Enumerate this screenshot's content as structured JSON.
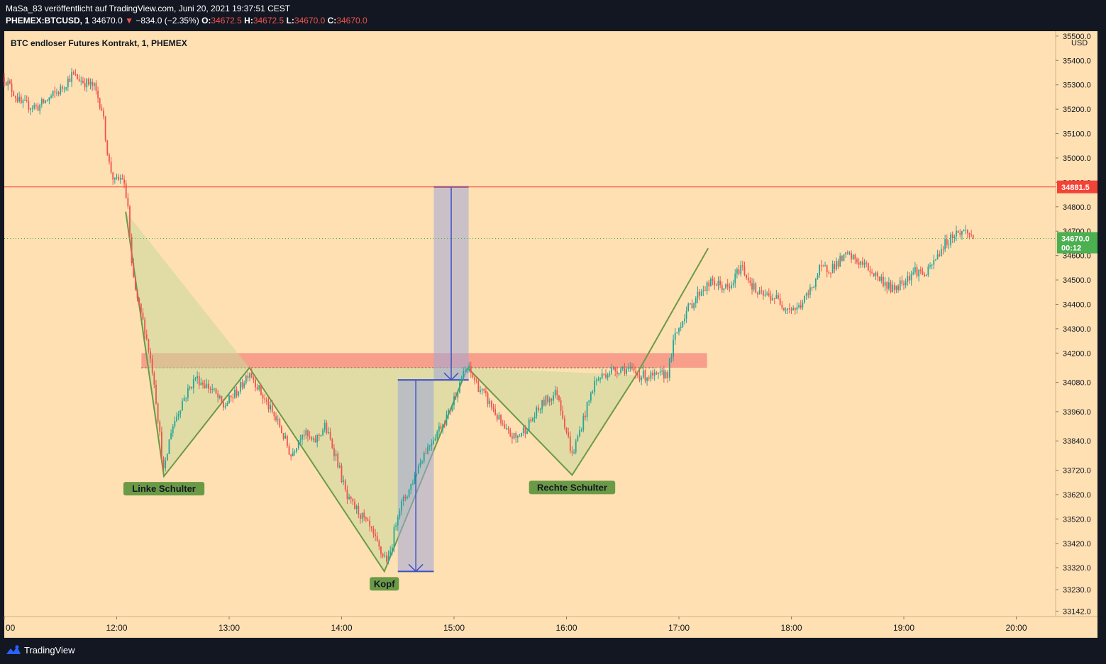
{
  "header": {
    "publish_line": "MaSa_83 veröffentlicht auf TradingView.com, Juni 20, 2021 19:37:51 CEST",
    "symbol": "PHEMEX:BTCUSD, 1",
    "last": "34670.0",
    "change_arrow": "▼",
    "change": "−834.0 (−2.35%)",
    "o_label": "O:",
    "o_value": "34672.5",
    "h_label": "H:",
    "h_value": "34672.5",
    "l_label": "L:",
    "l_value": "34670.0",
    "c_label": "C:",
    "c_value": "34670.0"
  },
  "footer": {
    "brand": "TradingView",
    "logo_icon": "tradingview-logo-icon"
  },
  "colors": {
    "chart_bg": "#ffe0b2",
    "frame_bg": "#131722",
    "up": "#26a69a",
    "down": "#ef5350",
    "resistance": "#f44336",
    "current": "#4caf50",
    "pattern_fill": "#c8d89a",
    "pattern_line": "#6b9a47",
    "label_bg": "#6b9a47",
    "projection_box": "#9fa8da",
    "neckline_zone": "#f48a7e",
    "arrow": "#3f51c4"
  },
  "chart_data": {
    "type": "candlestick",
    "title": "BTC endloser Futures Kontrakt, 1, PHEMEX",
    "currency": "USD",
    "x_unit": "time (hours, CEST)",
    "xlim": [
      11.0,
      20.35
    ],
    "ylim": [
      33120,
      35520
    ],
    "x_ticks": [
      {
        "x": 11.0,
        "label": "00"
      },
      {
        "x": 12.0,
        "label": "12:00"
      },
      {
        "x": 13.0,
        "label": "13:00"
      },
      {
        "x": 14.0,
        "label": "14:00"
      },
      {
        "x": 15.0,
        "label": "15:00"
      },
      {
        "x": 16.0,
        "label": "16:00"
      },
      {
        "x": 17.0,
        "label": "17:00"
      },
      {
        "x": 18.0,
        "label": "18:00"
      },
      {
        "x": 19.0,
        "label": "19:00"
      },
      {
        "x": 20.0,
        "label": "20:00"
      }
    ],
    "y_ticks": [
      {
        "y": 35500,
        "label": "35500.0"
      },
      {
        "y": 35400,
        "label": "35400.0"
      },
      {
        "y": 35300,
        "label": "35300.0"
      },
      {
        "y": 35200,
        "label": "35200.0"
      },
      {
        "y": 35100,
        "label": "35100.0"
      },
      {
        "y": 35000,
        "label": "35000.0"
      },
      {
        "y": 34900,
        "label": "34900.0"
      },
      {
        "y": 34800,
        "label": "34800.0"
      },
      {
        "y": 34700,
        "label": "34700.0"
      },
      {
        "y": 34600,
        "label": "34600.0"
      },
      {
        "y": 34500,
        "label": "34500.0"
      },
      {
        "y": 34400,
        "label": "34400.0"
      },
      {
        "y": 34300,
        "label": "34300.0"
      },
      {
        "y": 34200,
        "label": "34200.0"
      },
      {
        "y": 34080,
        "label": "34080.0"
      },
      {
        "y": 33960,
        "label": "33960.0"
      },
      {
        "y": 33840,
        "label": "33840.0"
      },
      {
        "y": 33720,
        "label": "33720.0"
      },
      {
        "y": 33620,
        "label": "33620.0"
      },
      {
        "y": 33520,
        "label": "33520.0"
      },
      {
        "y": 33420,
        "label": "33420.0"
      },
      {
        "y": 33320,
        "label": "33320.0"
      },
      {
        "y": 33230,
        "label": "33230.0"
      },
      {
        "y": 33142,
        "label": "33142.0"
      }
    ],
    "price_path": [
      [
        11.0,
        35330
      ],
      [
        11.15,
        35220
      ],
      [
        11.3,
        35210
      ],
      [
        11.5,
        35280
      ],
      [
        11.6,
        35340
      ],
      [
        11.8,
        35290
      ],
      [
        11.87,
        35200
      ],
      [
        11.93,
        34980
      ],
      [
        11.98,
        34900
      ],
      [
        12.05,
        34920
      ],
      [
        12.1,
        34800
      ],
      [
        12.13,
        34560
      ],
      [
        12.18,
        34420
      ],
      [
        12.25,
        34300
      ],
      [
        12.33,
        34100
      ],
      [
        12.42,
        33700
      ],
      [
        12.48,
        33880
      ],
      [
        12.58,
        34000
      ],
      [
        12.7,
        34100
      ],
      [
        12.85,
        34050
      ],
      [
        12.95,
        33980
      ],
      [
        13.1,
        34060
      ],
      [
        13.18,
        34130
      ],
      [
        13.3,
        34020
      ],
      [
        13.45,
        33900
      ],
      [
        13.55,
        33780
      ],
      [
        13.65,
        33880
      ],
      [
        13.75,
        33830
      ],
      [
        13.85,
        33900
      ],
      [
        13.95,
        33780
      ],
      [
        14.05,
        33600
      ],
      [
        14.15,
        33550
      ],
      [
        14.25,
        33480
      ],
      [
        14.35,
        33380
      ],
      [
        14.42,
        33350
      ],
      [
        14.5,
        33550
      ],
      [
        14.6,
        33640
      ],
      [
        14.72,
        33780
      ],
      [
        14.85,
        33880
      ],
      [
        14.95,
        33950
      ],
      [
        15.05,
        34080
      ],
      [
        15.12,
        34140
      ],
      [
        15.22,
        34060
      ],
      [
        15.35,
        33970
      ],
      [
        15.45,
        33880
      ],
      [
        15.55,
        33850
      ],
      [
        15.65,
        33900
      ],
      [
        15.8,
        34000
      ],
      [
        15.92,
        34040
      ],
      [
        16.05,
        33780
      ],
      [
        16.15,
        33930
      ],
      [
        16.25,
        34080
      ],
      [
        16.35,
        34120
      ],
      [
        16.5,
        34140
      ],
      [
        16.65,
        34110
      ],
      [
        16.8,
        34100
      ],
      [
        16.9,
        34120
      ],
      [
        16.96,
        34260
      ],
      [
        17.05,
        34360
      ],
      [
        17.2,
        34460
      ],
      [
        17.3,
        34490
      ],
      [
        17.45,
        34460
      ],
      [
        17.55,
        34560
      ],
      [
        17.7,
        34440
      ],
      [
        17.85,
        34430
      ],
      [
        17.95,
        34390
      ],
      [
        18.05,
        34380
      ],
      [
        18.15,
        34440
      ],
      [
        18.25,
        34540
      ],
      [
        18.35,
        34550
      ],
      [
        18.5,
        34600
      ],
      [
        18.65,
        34560
      ],
      [
        18.8,
        34500
      ],
      [
        18.9,
        34460
      ],
      [
        19.0,
        34500
      ],
      [
        19.1,
        34540
      ],
      [
        19.2,
        34520
      ],
      [
        19.35,
        34640
      ],
      [
        19.45,
        34690
      ],
      [
        19.55,
        34700
      ],
      [
        19.63,
        34670
      ]
    ],
    "resistance_level": {
      "value": 34881.5,
      "label": "34881.5"
    },
    "current_price": {
      "value": 34670.0,
      "label": "34670.0",
      "countdown": "00:12"
    },
    "pattern": {
      "name": "inverse head and shoulders",
      "points": [
        {
          "x": 12.08,
          "y": 34780
        },
        {
          "x": 12.42,
          "y": 33695
        },
        {
          "x": 13.18,
          "y": 34140
        },
        {
          "x": 14.38,
          "y": 33305
        },
        {
          "x": 15.12,
          "y": 34140
        },
        {
          "x": 16.05,
          "y": 33700
        },
        {
          "x": 16.62,
          "y": 34110
        },
        {
          "x": 17.0,
          "y": 34420
        },
        {
          "x": 17.26,
          "y": 34630
        }
      ],
      "neckline_zone": {
        "x_start": 12.22,
        "x_end": 17.25,
        "y_low": 34140,
        "y_high": 34200
      },
      "neckline_dots": {
        "x_start": 12.22,
        "x_end": 16.8,
        "y": 34140
      },
      "labels": [
        {
          "text": "Linke Schulter",
          "x": 12.42,
          "y": 33695
        },
        {
          "text": "Kopf",
          "x": 14.38,
          "y": 33305
        },
        {
          "text": "Rechte Schulter",
          "x": 16.05,
          "y": 33700
        }
      ]
    },
    "projections": [
      {
        "x_start": 14.5,
        "x_end": 14.82,
        "y_top": 34090,
        "y_bottom": 33305
      },
      {
        "x_start": 14.82,
        "x_end": 15.13,
        "y_top": 34881.5,
        "y_bottom": 34090
      }
    ]
  }
}
